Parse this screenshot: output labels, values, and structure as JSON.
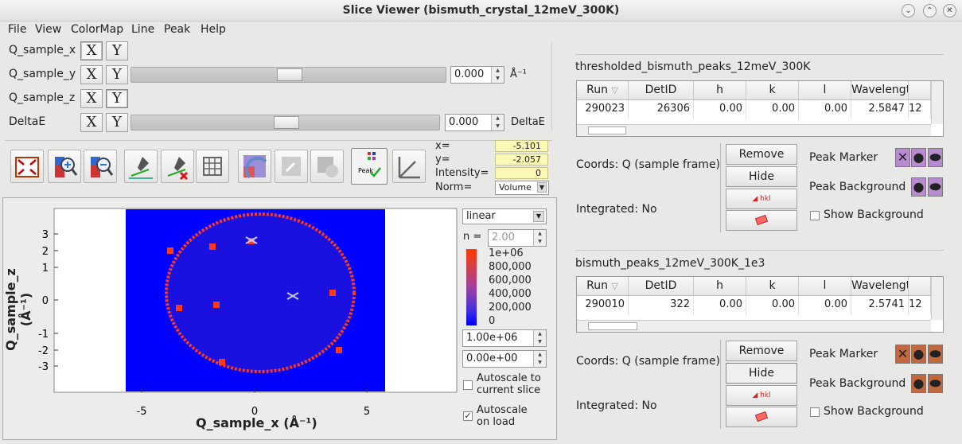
{
  "window": {
    "title": "Slice Viewer (bismuth_crystal_12meV_300K)",
    "min": "⌄",
    "max": "⌃",
    "close": "✕"
  },
  "menu": [
    "File",
    "View",
    "ColorMap",
    "Line",
    "Peak",
    "Help"
  ],
  "dims": [
    {
      "label": "Q_sample_x",
      "x": "X",
      "y": "Y",
      "selected": "X"
    },
    {
      "label": "Q_sample_y",
      "x": "X",
      "y": "Y",
      "selected": "Y",
      "value": "0.000",
      "unit": "Å⁻¹"
    },
    {
      "label": "Q_sample_z",
      "x": "X",
      "y": "Y",
      "selected": "Y"
    },
    {
      "label": "DeltaE",
      "x": "X",
      "y": "Y",
      "value": "0.000",
      "unit": "DeltaE"
    }
  ],
  "readout": {
    "x_label": "x=",
    "x": "-5.101",
    "y_label": "y=",
    "y": "-2.057",
    "int_label": "Intensity=",
    "intensity": "0",
    "norm_label": "Norm=",
    "norm": "Volume"
  },
  "plot": {
    "xlabel": "Q_sample_x (Å⁻¹)",
    "ylabel": "Q_sample_z (Å⁻¹)",
    "xticks": [
      "-5",
      "0",
      "5"
    ],
    "yticks": [
      "3",
      "2",
      "1",
      "0",
      "-1",
      "-2",
      "-3"
    ],
    "background": "#0000ff",
    "ring_color": "#ff3a1a"
  },
  "colorbar": {
    "scale": "linear",
    "n_label": "n =",
    "n": "2.00",
    "ticks": [
      "1e+06",
      "800,000",
      "600,000",
      "400,000",
      "200,000",
      "0"
    ],
    "max": "1.00e+06",
    "min": "0.00e+00"
  },
  "autoscale": {
    "slice_label": "Autoscale to current slice",
    "load_label": "Autoscale on load",
    "slice_checked": false,
    "load_checked": true
  },
  "workspaces": [
    {
      "name": "thresholded_bismuth_peaks_12meV_300K",
      "columns": [
        "Run",
        "DetID",
        "h",
        "k",
        "l",
        "Wavelength",
        ""
      ],
      "rows": [
        [
          "290023",
          "26306",
          "0.00",
          "0.00",
          "0.00",
          "2.5847",
          "12"
        ]
      ],
      "coords": "Coords: Q (sample frame)",
      "integrated": "Integrated: No",
      "remove": "Remove",
      "hide": "Hide",
      "marker_label": "Peak Marker",
      "background_label": "Peak Background",
      "show_bg": "Show Background",
      "color": "#b88ad0"
    },
    {
      "name": "bismuth_peaks_12meV_300K_1e3",
      "columns": [
        "Run",
        "DetID",
        "h",
        "k",
        "l",
        "Wavelength",
        ""
      ],
      "rows": [
        [
          "290010",
          "322",
          "0.00",
          "0.00",
          "0.00",
          "2.5741",
          "12"
        ]
      ],
      "coords": "Coords: Q (sample frame)",
      "integrated": "Integrated: No",
      "remove": "Remove",
      "hide": "Hide",
      "marker_label": "Peak Marker",
      "background_label": "Peak Background",
      "show_bg": "Show Background",
      "color": "#c2683e"
    }
  ],
  "icons": [
    "zoom-full-icon",
    "zoom-in-icon",
    "zoom-out-icon",
    "line-icon",
    "clear-line-icon",
    "grid-icon",
    "rebin-icon",
    "refresh-icon",
    "lock-icon",
    "peak-overlay-icon",
    "nonorthogonal-axes-icon"
  ]
}
